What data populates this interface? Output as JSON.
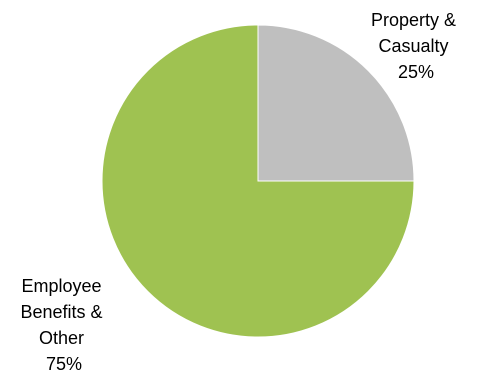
{
  "chart_data": {
    "type": "pie",
    "title": "",
    "slices": [
      {
        "label_lines": [
          "Property &",
          "Casualty"
        ],
        "value": 25,
        "value_label": "25%",
        "color": "#bfbfbf"
      },
      {
        "label_lines": [
          "Employee",
          "Benefits &",
          "Other"
        ],
        "value": 75,
        "value_label": "75%",
        "color": "#9fc251"
      }
    ],
    "start_angle_deg": 0,
    "direction": "clockwise",
    "legend": "none"
  }
}
